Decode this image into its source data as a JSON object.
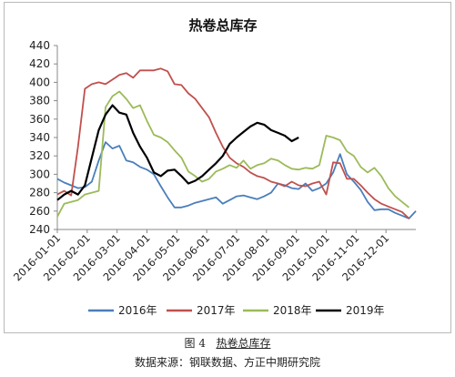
{
  "figure": {
    "number_label": "图 4",
    "title_caption": "热卷总库存",
    "source": "数据来源：钢联数据、方正中期研究院"
  },
  "chart_data": {
    "type": "line",
    "title": "热卷总库存",
    "xlabel": "",
    "ylabel": "",
    "ylim": [
      240,
      440
    ],
    "yticks": [
      240,
      260,
      280,
      300,
      320,
      340,
      360,
      380,
      400,
      420,
      440
    ],
    "x_tick_labels": [
      "2016-01-01",
      "2016-02-01",
      "2016-03-01",
      "2016-04-01",
      "2016-05-01",
      "2016-06-01",
      "2016-07-01",
      "2016-08-01",
      "2016-09-01",
      "2016-10-01",
      "2016-11-01",
      "2016-12-01"
    ],
    "x_range_weeks": [
      0,
      52
    ],
    "grid": false,
    "legend_position": "bottom",
    "series": [
      {
        "name": "2016年",
        "color": "#4a7ebb",
        "x": [
          0,
          1,
          2,
          3,
          4,
          5,
          6,
          7,
          8,
          9,
          10,
          11,
          12,
          13,
          14,
          15,
          16,
          17,
          18,
          19,
          20,
          21,
          22,
          23,
          24,
          25,
          26,
          27,
          28,
          29,
          30,
          31,
          32,
          33,
          34,
          35,
          36,
          37,
          38,
          39,
          40,
          41,
          42,
          43,
          44,
          45,
          46,
          47,
          48,
          49,
          50,
          51,
          52
        ],
        "values": [
          295,
          291,
          288,
          285,
          286,
          292,
          315,
          335,
          328,
          331,
          315,
          313,
          308,
          305,
          300,
          287,
          275,
          264,
          264,
          266,
          269,
          271,
          273,
          275,
          268,
          272,
          276,
          277,
          275,
          273,
          276,
          280,
          290,
          288,
          285,
          284,
          290,
          282,
          285,
          290,
          302,
          322,
          300,
          292,
          283,
          270,
          261,
          262,
          262,
          258,
          255,
          252,
          260
        ]
      },
      {
        "name": "2017年",
        "color": "#c0504d",
        "x": [
          0,
          1,
          2,
          3,
          4,
          5,
          6,
          7,
          8,
          9,
          10,
          11,
          12,
          13,
          14,
          15,
          16,
          17,
          18,
          19,
          20,
          21,
          22,
          23,
          24,
          25,
          26,
          27,
          28,
          29,
          30,
          31,
          32,
          33,
          34,
          35,
          36,
          37,
          38,
          39,
          40,
          41,
          42,
          43,
          44,
          45,
          46,
          47,
          48,
          49,
          50,
          51
        ],
        "values": [
          278,
          282,
          277,
          330,
          393,
          398,
          400,
          398,
          403,
          408,
          410,
          405,
          413,
          413,
          413,
          415,
          412,
          398,
          397,
          388,
          382,
          372,
          362,
          345,
          330,
          318,
          312,
          308,
          302,
          298,
          296,
          292,
          290,
          287,
          292,
          288,
          287,
          290,
          292,
          278,
          313,
          312,
          295,
          295,
          288,
          280,
          273,
          268,
          265,
          262,
          259,
          252
        ]
      },
      {
        "name": "2018年",
        "color": "#9bbb59",
        "x": [
          0,
          1,
          2,
          3,
          4,
          5,
          6,
          7,
          8,
          9,
          10,
          11,
          12,
          13,
          14,
          15,
          16,
          17,
          18,
          19,
          20,
          21,
          22,
          23,
          24,
          25,
          26,
          27,
          28,
          29,
          30,
          31,
          32,
          33,
          34,
          35,
          36,
          37,
          38,
          39,
          40,
          41,
          42,
          43,
          44,
          45,
          46,
          47,
          48,
          49,
          50,
          51
        ],
        "values": [
          254,
          268,
          270,
          272,
          278,
          280,
          282,
          373,
          385,
          390,
          382,
          372,
          375,
          358,
          343,
          340,
          335,
          326,
          318,
          303,
          298,
          292,
          295,
          303,
          306,
          310,
          307,
          315,
          306,
          310,
          312,
          317,
          315,
          310,
          306,
          305,
          307,
          306,
          310,
          342,
          340,
          337,
          325,
          320,
          308,
          302,
          307,
          298,
          285,
          276,
          270,
          264
        ]
      },
      {
        "name": "2019年",
        "color": "#000000",
        "x": [
          0,
          1,
          2,
          3,
          4,
          5,
          6,
          7,
          8,
          9,
          10,
          11,
          12,
          13,
          14,
          15,
          16,
          17,
          18,
          19,
          20,
          21,
          22,
          23,
          24,
          25,
          26,
          27,
          28,
          29,
          30,
          31,
          32,
          33,
          34,
          35
        ],
        "values": [
          272,
          278,
          282,
          278,
          288,
          318,
          348,
          365,
          375,
          367,
          365,
          345,
          330,
          318,
          302,
          298,
          304,
          305,
          298,
          290,
          293,
          298,
          305,
          312,
          320,
          333,
          340,
          346,
          352,
          356,
          354,
          348,
          345,
          342,
          336,
          340
        ]
      }
    ]
  }
}
